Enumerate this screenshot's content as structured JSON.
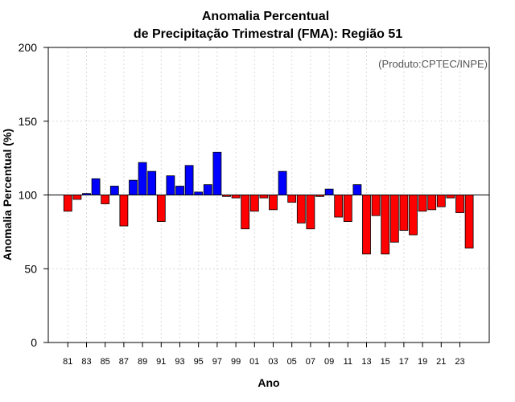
{
  "chart_data": {
    "type": "bar",
    "title": "Anomalia Percentual",
    "subtitle": "de Precipitação Trimestral (FMA): Região 51",
    "xlabel": "Ano",
    "ylabel": "Anomalia Percentual (%)",
    "annotation": "(Produto:CPTEC/INPE)",
    "baseline": 100,
    "ylim": [
      0,
      200
    ],
    "yticks": [
      0,
      50,
      100,
      150,
      200
    ],
    "grid": true,
    "categories": [
      "1981",
      "1982",
      "1983",
      "1984",
      "1985",
      "1986",
      "1987",
      "1988",
      "1989",
      "1990",
      "1991",
      "1992",
      "1993",
      "1994",
      "1995",
      "1996",
      "1997",
      "1998",
      "1999",
      "2000",
      "2001",
      "2002",
      "2003",
      "2004",
      "2005",
      "2006",
      "2007",
      "2008",
      "2009",
      "2010",
      "2011",
      "2012",
      "2013",
      "2014",
      "2015",
      "2016",
      "2017",
      "2018",
      "2019",
      "2020",
      "2021",
      "2022",
      "2023",
      "2024"
    ],
    "xtick_labels": [
      "81",
      "83",
      "85",
      "87",
      "89",
      "91",
      "93",
      "95",
      "97",
      "99",
      "01",
      "03",
      "05",
      "07",
      "09",
      "11",
      "13",
      "15",
      "17",
      "19",
      "21",
      "23"
    ],
    "values": [
      89,
      97,
      101,
      111,
      94,
      106,
      79,
      110,
      122,
      116,
      82,
      113,
      106,
      120,
      102,
      107,
      129,
      99,
      98,
      77,
      89,
      98,
      90,
      116,
      95,
      81,
      77,
      99,
      104,
      85,
      82,
      107,
      60,
      86,
      60,
      68,
      76,
      73,
      89,
      90,
      92,
      98,
      88,
      64
    ],
    "colors": {
      "above": "#0000ff",
      "below": "#ff0000",
      "edge": "#000000",
      "baseline": "#000000"
    }
  }
}
